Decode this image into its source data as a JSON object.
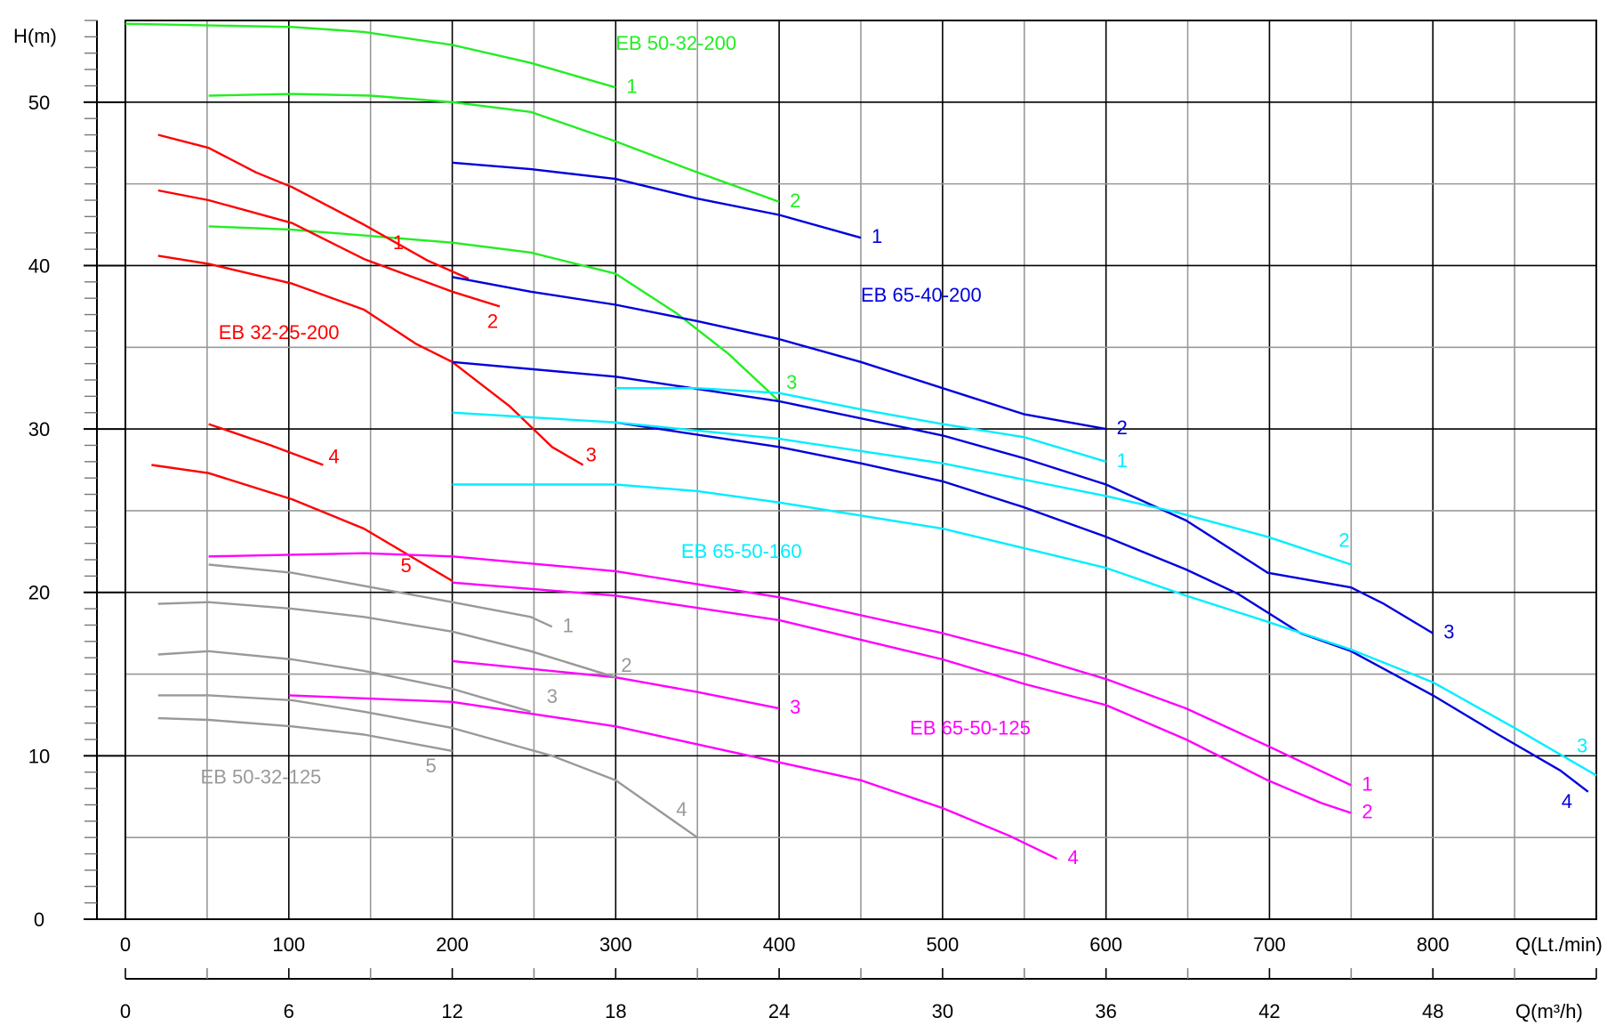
{
  "chart_data": {
    "type": "line",
    "title": "",
    "ylabel": "H(m)",
    "xlabel": "Q(Lt./min)",
    "xlabel2": "Q(m³/h)",
    "xlim": [
      0,
      900
    ],
    "ylim": [
      0,
      55
    ],
    "grid": true,
    "x_ticks": [
      0,
      100,
      200,
      300,
      400,
      500,
      600,
      700,
      800
    ],
    "x_tick_labels": [
      "0",
      "100",
      "200",
      "300",
      "400",
      "500",
      "600",
      "700",
      "800"
    ],
    "x2_ticks_lpm": [
      0,
      100,
      200,
      300,
      400,
      500,
      600,
      700,
      800
    ],
    "x2_tick_labels": [
      "0",
      "6",
      "12",
      "18",
      "24",
      "30",
      "36",
      "42",
      "48"
    ],
    "y_ticks": [
      0,
      10,
      20,
      30,
      40,
      50
    ],
    "y_tick_labels": [
      "0",
      "10",
      "20",
      "30",
      "40",
      "50"
    ],
    "families": [
      {
        "name": "EB 50-32-200",
        "color": "#22ee22",
        "curves": [
          {
            "label": "1",
            "points": [
              [
                0,
                54.8
              ],
              [
                102,
                54.6
              ],
              [
                146,
                54.3
              ],
              [
                200,
                53.5
              ],
              [
                248,
                52.4
              ],
              [
                300,
                50.9
              ]
            ]
          },
          {
            "label": "2",
            "points": [
              [
                51,
                50.4
              ],
              [
                102,
                50.5
              ],
              [
                150,
                50.4
              ],
              [
                200,
                50
              ],
              [
                248,
                49.4
              ],
              [
                300,
                47.6
              ],
              [
                350,
                45.7
              ],
              [
                400,
                43.9
              ]
            ]
          },
          {
            "label": "3",
            "points": [
              [
                51,
                42.4
              ],
              [
                102,
                42.2
              ],
              [
                200,
                41.4
              ],
              [
                248,
                40.8
              ],
              [
                300,
                39.5
              ],
              [
                337,
                37.1
              ],
              [
                369,
                34.6
              ],
              [
                400,
                31.7
              ]
            ]
          }
        ]
      },
      {
        "name": "EB 32-25-200",
        "color": "#ff0000",
        "curves": [
          {
            "label": "1",
            "points": [
              [
                20,
                48
              ],
              [
                51,
                47.2
              ],
              [
                80,
                45.7
              ],
              [
                102,
                44.8
              ],
              [
                146,
                42.5
              ],
              [
                185,
                40.3
              ],
              [
                210,
                39.2
              ]
            ]
          },
          {
            "label": "2",
            "points": [
              [
                20,
                44.6
              ],
              [
                51,
                44
              ],
              [
                102,
                42.6
              ],
              [
                146,
                40.4
              ],
              [
                200,
                38.4
              ],
              [
                229,
                37.5
              ]
            ]
          },
          {
            "label": "3",
            "points": [
              [
                20,
                40.6
              ],
              [
                51,
                40.1
              ],
              [
                102,
                38.9
              ],
              [
                146,
                37.3
              ],
              [
                178,
                35.2
              ],
              [
                200,
                34.1
              ],
              [
                235,
                31.4
              ],
              [
                261,
                28.9
              ],
              [
                280,
                27.8
              ]
            ]
          },
          {
            "label": "4",
            "points": [
              [
                51,
                30.3
              ],
              [
                89,
                29
              ],
              [
                121,
                27.8
              ]
            ]
          },
          {
            "label": "5",
            "points": [
              [
                16,
                27.8
              ],
              [
                51,
                27.3
              ],
              [
                102,
                25.7
              ],
              [
                146,
                23.9
              ],
              [
                200,
                20.7
              ]
            ]
          }
        ]
      },
      {
        "name": "EB 65-40-200",
        "color": "#0000dd",
        "curves": [
          {
            "label": "1",
            "points": [
              [
                200,
                46.3
              ],
              [
                248,
                45.9
              ],
              [
                300,
                45.3
              ],
              [
                350,
                44.1
              ],
              [
                400,
                43.1
              ],
              [
                450,
                41.7
              ]
            ]
          },
          {
            "label": "2",
            "points": [
              [
                200,
                39.3
              ],
              [
                248,
                38.4
              ],
              [
                300,
                37.6
              ],
              [
                350,
                36.6
              ],
              [
                400,
                35.5
              ],
              [
                450,
                34.1
              ],
              [
                500,
                32.5
              ],
              [
                550,
                30.9
              ],
              [
                600,
                30
              ]
            ]
          },
          {
            "label": "3",
            "points": [
              [
                200,
                34.1
              ],
              [
                300,
                33.2
              ],
              [
                400,
                31.7
              ],
              [
                500,
                29.6
              ],
              [
                550,
                28.2
              ],
              [
                600,
                26.6
              ],
              [
                649,
                24.4
              ],
              [
                699,
                21.2
              ],
              [
                750,
                20.3
              ],
              [
                770,
                19.3
              ],
              [
                800,
                17.5
              ]
            ]
          },
          {
            "label": "4",
            "points": [
              [
                300,
                30.4
              ],
              [
                400,
                28.9
              ],
              [
                450,
                27.9
              ],
              [
                500,
                26.8
              ],
              [
                550,
                25.2
              ],
              [
                600,
                23.4
              ],
              [
                649,
                21.4
              ],
              [
                681,
                19.9
              ],
              [
                719,
                17.5
              ],
              [
                750,
                16.4
              ],
              [
                800,
                13.7
              ],
              [
                840,
                11.3
              ],
              [
                878,
                9.1
              ],
              [
                895,
                7.8
              ]
            ]
          }
        ]
      },
      {
        "name": "EB 65-50-160",
        "color": "#00eeff",
        "curves": [
          {
            "label": "1",
            "points": [
              [
                300,
                32.5
              ],
              [
                350,
                32.5
              ],
              [
                400,
                32.2
              ],
              [
                450,
                31.2
              ],
              [
                500,
                30.3
              ],
              [
                550,
                29.5
              ],
              [
                600,
                28
              ]
            ]
          },
          {
            "label": "2",
            "points": [
              [
                200,
                31
              ],
              [
                300,
                30.4
              ],
              [
                400,
                29.4
              ],
              [
                500,
                27.9
              ],
              [
                600,
                25.9
              ],
              [
                643,
                24.9
              ],
              [
                699,
                23.4
              ],
              [
                750,
                21.7
              ]
            ]
          },
          {
            "label": "3",
            "points": [
              [
                200,
                26.6
              ],
              [
                248,
                26.6
              ],
              [
                300,
                26.6
              ],
              [
                350,
                26.2
              ],
              [
                400,
                25.5
              ],
              [
                500,
                23.9
              ],
              [
                600,
                21.5
              ],
              [
                649,
                19.8
              ],
              [
                699,
                18.2
              ],
              [
                750,
                16.5
              ],
              [
                800,
                14.5
              ],
              [
                850,
                11.7
              ],
              [
                900,
                8.8
              ]
            ]
          }
        ]
      },
      {
        "name": "EB 65-50-125",
        "color": "#ff00ff",
        "curves": [
          {
            "label": "1",
            "points": [
              [
                51,
                22.2
              ],
              [
                146,
                22.4
              ],
              [
                200,
                22.2
              ],
              [
                300,
                21.3
              ],
              [
                400,
                19.7
              ],
              [
                500,
                17.5
              ],
              [
                550,
                16.2
              ],
              [
                600,
                14.7
              ],
              [
                649,
                12.9
              ],
              [
                699,
                10.6
              ],
              [
                750,
                8.2
              ]
            ]
          },
          {
            "label": "2",
            "points": [
              [
                200,
                20.6
              ],
              [
                300,
                19.8
              ],
              [
                400,
                18.3
              ],
              [
                500,
                15.9
              ],
              [
                550,
                14.4
              ],
              [
                600,
                13.1
              ],
              [
                649,
                11
              ],
              [
                699,
                8.5
              ],
              [
                732,
                7.1
              ],
              [
                750,
                6.5
              ]
            ]
          },
          {
            "label": "3",
            "points": [
              [
                200,
                15.8
              ],
              [
                300,
                14.8
              ],
              [
                350,
                13.9
              ],
              [
                400,
                12.9
              ]
            ]
          },
          {
            "label": "4",
            "points": [
              [
                100,
                13.7
              ],
              [
                200,
                13.3
              ],
              [
                300,
                11.8
              ],
              [
                400,
                9.6
              ],
              [
                450,
                8.5
              ],
              [
                500,
                6.8
              ],
              [
                541,
                5.1
              ],
              [
                570,
                3.7
              ]
            ]
          }
        ]
      },
      {
        "name": "EB 50-32-125",
        "color": "#999999",
        "curves": [
          {
            "label": "1",
            "points": [
              [
                51,
                21.7
              ],
              [
                102,
                21.2
              ],
              [
                146,
                20.4
              ],
              [
                200,
                19.4
              ],
              [
                248,
                18.5
              ],
              [
                261,
                17.9
              ]
            ]
          },
          {
            "label": "2",
            "points": [
              [
                20,
                19.3
              ],
              [
                51,
                19.4
              ],
              [
                102,
                19
              ],
              [
                146,
                18.5
              ],
              [
                200,
                17.6
              ],
              [
                248,
                16.4
              ],
              [
                300,
                14.8
              ]
            ]
          },
          {
            "label": "3",
            "points": [
              [
                20,
                16.2
              ],
              [
                51,
                16.4
              ],
              [
                102,
                15.9
              ],
              [
                146,
                15.2
              ],
              [
                200,
                14.1
              ],
              [
                248,
                12.7
              ]
            ]
          },
          {
            "label": "4",
            "points": [
              [
                20,
                13.7
              ],
              [
                51,
                13.7
              ],
              [
                102,
                13.4
              ],
              [
                146,
                12.7
              ],
              [
                200,
                11.7
              ],
              [
                261,
                10
              ],
              [
                300,
                8.5
              ],
              [
                350,
                5
              ]
            ]
          },
          {
            "label": "5",
            "points": [
              [
                20,
                12.3
              ],
              [
                51,
                12.2
              ],
              [
                102,
                11.8
              ],
              [
                146,
                11.3
              ],
              [
                200,
                10.3
              ]
            ]
          }
        ]
      }
    ]
  }
}
